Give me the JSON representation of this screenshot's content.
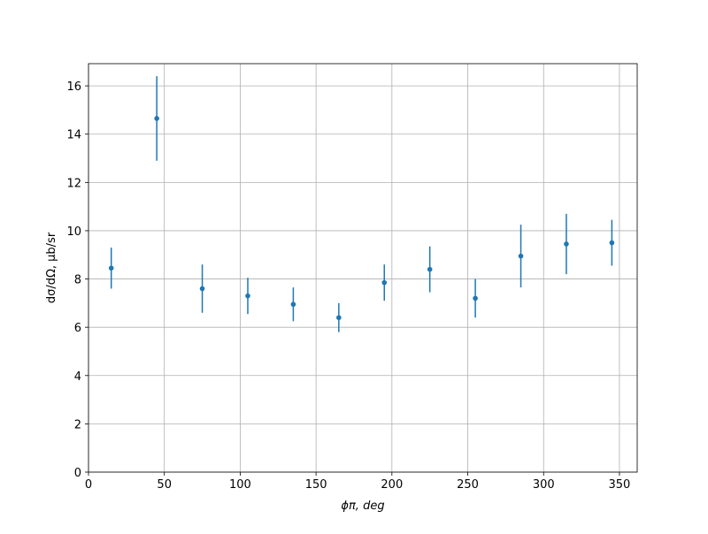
{
  "chart_data": {
    "type": "errorbar",
    "xlabel": "ϕπ, deg",
    "ylabel": "dσ/dΩ, μb/sr",
    "x": [
      15,
      45,
      75,
      105,
      135,
      165,
      195,
      225,
      255,
      285,
      315,
      345
    ],
    "series": [
      {
        "color": "#1f77b4",
        "values": [
          8.45,
          14.65,
          7.6,
          7.3,
          6.95,
          6.4,
          7.85,
          8.4,
          7.2,
          8.95,
          9.45,
          9.5
        ],
        "errors": [
          0.85,
          1.75,
          1.0,
          0.75,
          0.7,
          0.6,
          0.75,
          0.95,
          0.8,
          1.3,
          1.25,
          0.95
        ]
      }
    ],
    "xlim": [
      0,
      361.7
    ],
    "ylim": [
      0,
      16.92
    ],
    "xticks": [
      0,
      50,
      100,
      150,
      200,
      250,
      300,
      350
    ],
    "yticks": [
      0,
      2,
      4,
      6,
      8,
      10,
      12,
      14,
      16
    ],
    "grid": true
  }
}
